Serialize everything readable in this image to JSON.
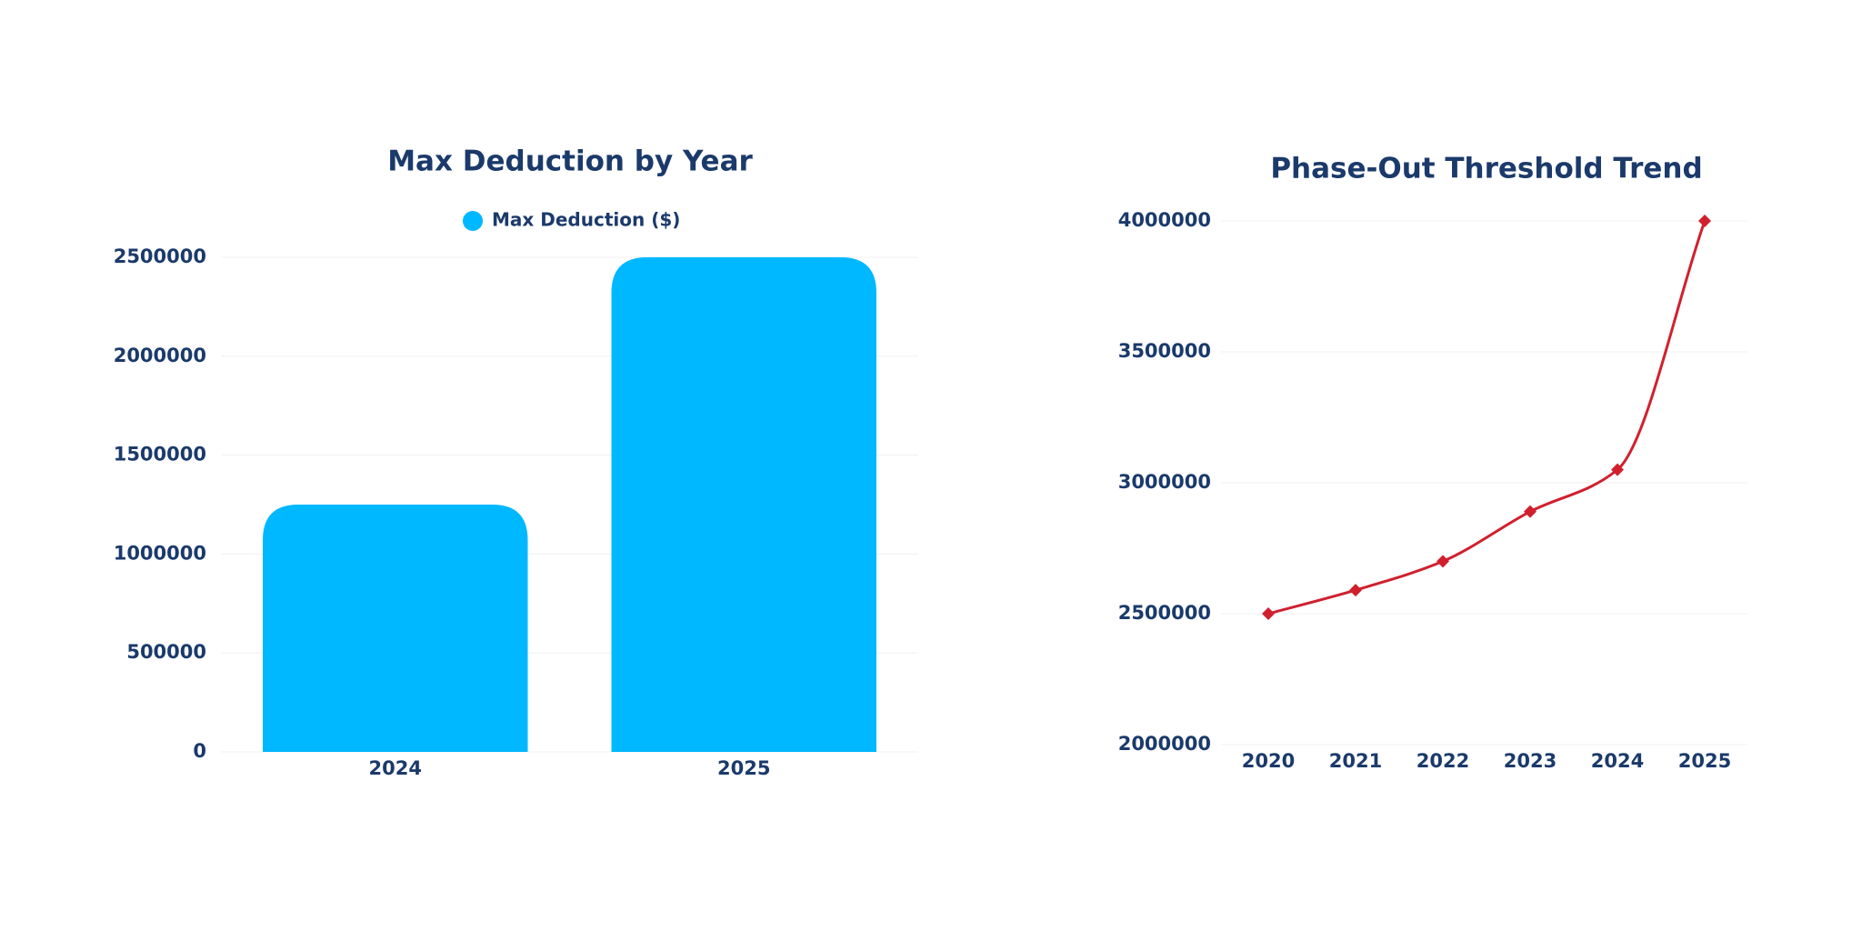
{
  "chart_data": [
    {
      "type": "bar",
      "title": "Max Deduction by Year",
      "categories": [
        "2024",
        "2025"
      ],
      "series": [
        {
          "name": "Max Deduction ($)",
          "color": "#00b8ff",
          "values": [
            1250000,
            2500000
          ]
        }
      ],
      "ylim": [
        0,
        2500000
      ],
      "yticks": [
        0,
        500000,
        1000000,
        1500000,
        2000000,
        2500000
      ],
      "grid": true
    },
    {
      "type": "line",
      "title": "Phase-Out Threshold Trend",
      "categories": [
        "2020",
        "2021",
        "2022",
        "2023",
        "2024",
        "2025"
      ],
      "series": [
        {
          "name": "Phase-Out Threshold",
          "color": "#d0202e",
          "values": [
            2500000,
            2590000,
            2700000,
            2890000,
            3050000,
            4000000
          ]
        }
      ],
      "ylim": [
        2000000,
        4000000
      ],
      "yticks": [
        2000000,
        2500000,
        3000000,
        3500000,
        4000000
      ],
      "grid": true
    }
  ]
}
